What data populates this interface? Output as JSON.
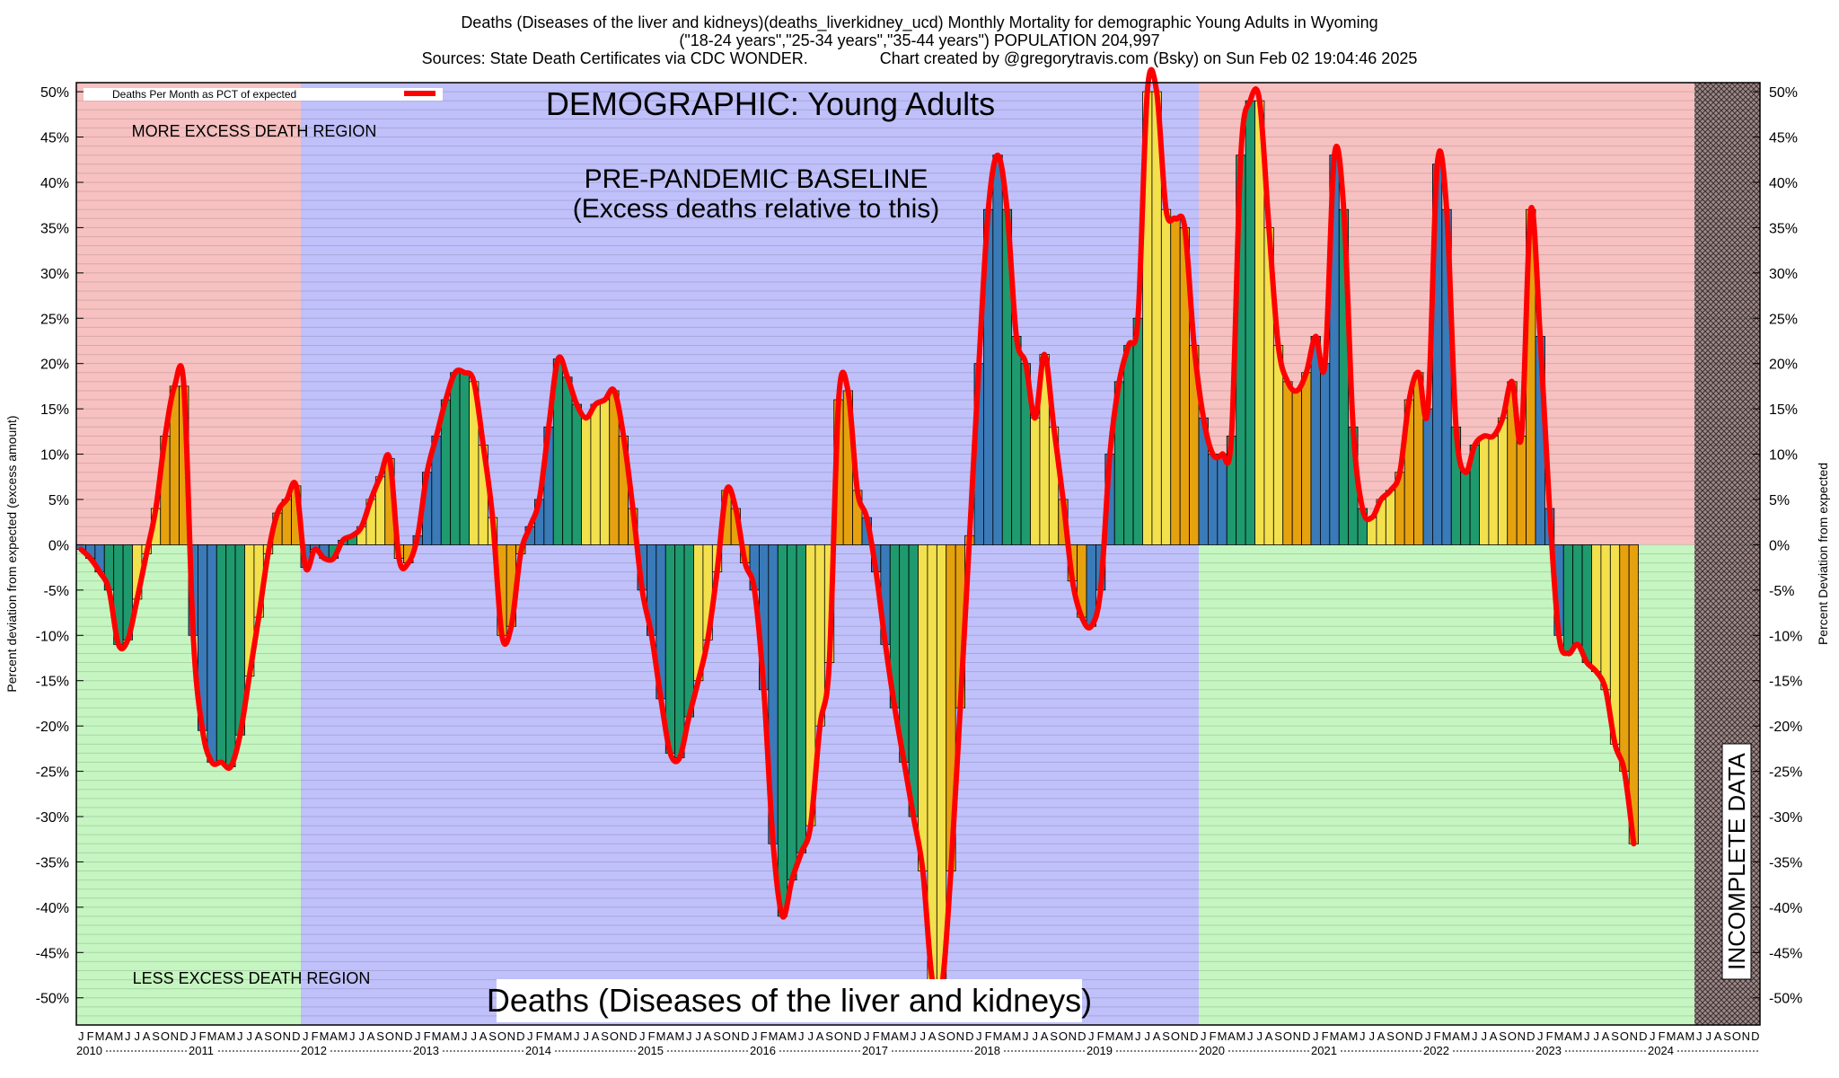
{
  "header": {
    "line1": "Deaths (Diseases of the liver and kidneys)(deaths_liverkidney_ucd) Monthly Mortality for demographic Young Adults in Wyoming",
    "line2": "(\"18-24 years\",\"25-34 years\",\"35-44 years\") POPULATION 204,997",
    "line3": "Sources: State Death Certificates via CDC WONDER.                Chart created by @gregorytravis.com (Bsky) on Sun Feb 02 19:04:46 2025"
  },
  "colors": {
    "excess_region": "#f7c1c1",
    "less_region": "#c5f5c0",
    "baseline_region": "#c0c0fb",
    "line": "#ff0000",
    "bar_palette": [
      "#3a7ab8",
      "#1f9a6e",
      "#f3e04d",
      "#e6a10f"
    ]
  },
  "chart_data": {
    "type": "bar",
    "title": "DEMOGRAPHIC: Young Adults",
    "bottom_label": "Deaths (Diseases of the liver and kidneys)",
    "ylabel": "Percent deviation from expected (excess amount)",
    "ylabel_right": "Percent Deviation from expected",
    "ylim": [
      -53,
      51
    ],
    "yticks": [
      50,
      45,
      40,
      35,
      30,
      25,
      20,
      15,
      10,
      5,
      0,
      -5,
      -10,
      -15,
      -20,
      -25,
      -30,
      -35,
      -40,
      -45,
      -50
    ],
    "grid": true,
    "legend": {
      "label": "Deaths Per Month as PCT of expected",
      "position": "top-left"
    },
    "regions": {
      "more_excess": "MORE EXCESS DEATH REGION",
      "less_excess": "LESS EXCESS DEATH REGION",
      "baseline_title": "PRE-PANDEMIC BASELINE",
      "baseline_sub": "(Excess deaths relative to this)",
      "incomplete": "INCOMPLETE DATA",
      "baseline_start": "2012-01",
      "baseline_end": "2019-12",
      "incomplete_start": "2024-06"
    },
    "month_letters": [
      "J",
      "F",
      "M",
      "A",
      "M",
      "J",
      "J",
      "A",
      "S",
      "O",
      "N",
      "D"
    ],
    "years": [
      "2010",
      "2011",
      "2012",
      "2013",
      "2014",
      "2015",
      "2016",
      "2017",
      "2018",
      "2019",
      "2020",
      "2021",
      "2022",
      "2023",
      "2024"
    ],
    "start": "2010-01",
    "values": [
      -0.5,
      -1.5,
      -3,
      -5,
      -11,
      -10.5,
      -6,
      -1,
      4,
      12,
      17.5,
      17.5,
      -10,
      -20.5,
      -24,
      -24,
      -24.5,
      -21,
      -14.5,
      -8,
      -1,
      3.5,
      5,
      6.5,
      -2.5,
      -0.5,
      -1.5,
      -1.5,
      0.5,
      1,
      2,
      5,
      7.5,
      9.5,
      -1.5,
      -2,
      1,
      8,
      12,
      16,
      19,
      19,
      18,
      11,
      3,
      -10,
      -9,
      -1,
      2,
      5,
      13,
      20.5,
      18.5,
      15.5,
      14,
      15.5,
      16,
      17,
      12,
      4,
      -5,
      -10,
      -17,
      -23,
      -23.5,
      -19,
      -15,
      -10.5,
      -3,
      6,
      4,
      -2,
      -5,
      -16,
      -33,
      -41,
      -37,
      -34,
      -31,
      -20,
      -13,
      16,
      17,
      6,
      3,
      -3,
      -11,
      -18,
      -24,
      -30,
      -36,
      -48,
      -49,
      -36,
      -18,
      1,
      20,
      37,
      43,
      37,
      23,
      20,
      14,
      21,
      13,
      5,
      -4,
      -8,
      -9,
      -5,
      10,
      18,
      22,
      25,
      50,
      50,
      37,
      36,
      35,
      22,
      14,
      10,
      10,
      12,
      43,
      49,
      49,
      35,
      22,
      18,
      17,
      19,
      23,
      20,
      43,
      37,
      13,
      4,
      3,
      5,
      6,
      8,
      16,
      19,
      15,
      42,
      37,
      13,
      8,
      11,
      12,
      12,
      14,
      18,
      12,
      37,
      23,
      4,
      -10,
      -12,
      -11,
      -13,
      -14,
      -16,
      -22,
      -25,
      -33
    ]
  }
}
